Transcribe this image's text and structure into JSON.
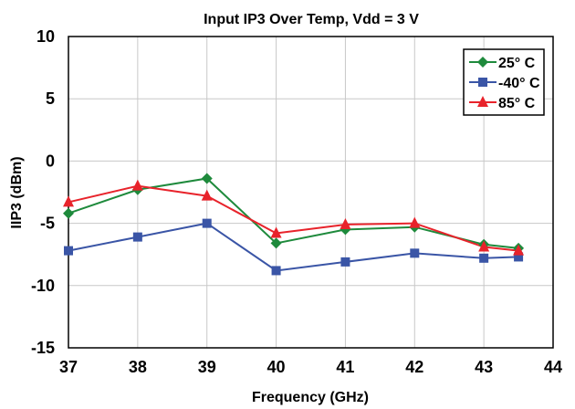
{
  "chart_data": {
    "type": "line",
    "title": "Input IP3 Over Temp, Vdd = 3 V",
    "xlabel": "Frequency (GHz)",
    "ylabel": "IIP3 (dBm)",
    "xlim": [
      37,
      44
    ],
    "ylim": [
      -15,
      10
    ],
    "xticks": [
      37,
      38,
      39,
      40,
      41,
      42,
      43,
      44
    ],
    "yticks": [
      -15,
      -10,
      -5,
      0,
      5,
      10
    ],
    "grid": true,
    "legend": "top-right",
    "x": [
      37,
      38,
      39,
      40,
      41,
      42,
      43,
      43.5
    ],
    "series": [
      {
        "name": "25° C",
        "color": "#1e8a3c",
        "marker": "diamond",
        "values": [
          -4.2,
          -2.3,
          -1.4,
          -6.6,
          -5.5,
          -5.3,
          -6.7,
          -7.0
        ]
      },
      {
        "name": "-40° C",
        "color": "#3a55a6",
        "marker": "square",
        "values": [
          -7.2,
          -6.1,
          -5.0,
          -8.8,
          -8.1,
          -7.4,
          -7.8,
          -7.7
        ]
      },
      {
        "name": "85° C",
        "color": "#e8232b",
        "marker": "triangle",
        "values": [
          -3.3,
          -2.0,
          -2.8,
          -5.8,
          -5.1,
          -5.0,
          -6.9,
          -7.2
        ]
      }
    ]
  }
}
